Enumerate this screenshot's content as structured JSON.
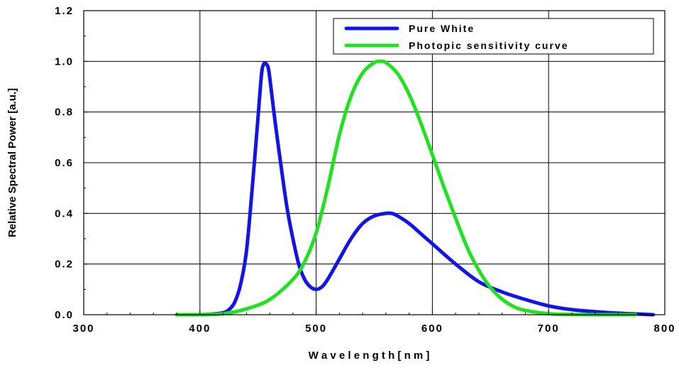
{
  "chart_data": {
    "type": "line",
    "title": "",
    "xlabel": "W a v e l e n g t h   [ n m ]",
    "ylabel": "Relative Spectral Power [a.u.]",
    "xlim": [
      300,
      800
    ],
    "ylim": [
      0,
      1.2
    ],
    "x_ticks": [
      "300",
      "400",
      "500",
      "600",
      "700",
      "800"
    ],
    "y_ticks": [
      "0.0",
      "0.2",
      "0.4",
      "0.6",
      "0.8",
      "1.0",
      "1.2"
    ],
    "grid": true,
    "legend_position": "top-right",
    "series": [
      {
        "name": "Pure White",
        "color": "#1414e6",
        "x": [
          380,
          400,
          410,
          420,
          425,
          430,
          435,
          440,
          445,
          450,
          453,
          455,
          457,
          459,
          461,
          465,
          470,
          475,
          480,
          485,
          490,
          495,
          500,
          505,
          510,
          520,
          530,
          540,
          550,
          560,
          565,
          570,
          580,
          590,
          600,
          620,
          640,
          660,
          680,
          700,
          720,
          740,
          760,
          780,
          790
        ],
        "y": [
          0.0,
          0.0,
          0.002,
          0.008,
          0.02,
          0.05,
          0.12,
          0.25,
          0.5,
          0.78,
          0.95,
          0.99,
          0.99,
          0.97,
          0.9,
          0.75,
          0.58,
          0.42,
          0.3,
          0.2,
          0.14,
          0.11,
          0.1,
          0.11,
          0.14,
          0.22,
          0.3,
          0.36,
          0.39,
          0.4,
          0.4,
          0.39,
          0.36,
          0.32,
          0.28,
          0.2,
          0.13,
          0.09,
          0.06,
          0.035,
          0.02,
          0.012,
          0.006,
          0.002,
          0.0
        ]
      },
      {
        "name": "Photopic sensitivity curve",
        "color": "#22e022",
        "x": [
          380,
          400,
          420,
          440,
          460,
          480,
          490,
          500,
          510,
          520,
          530,
          540,
          550,
          555,
          560,
          570,
          580,
          590,
          600,
          610,
          620,
          630,
          640,
          650,
          660,
          670,
          680,
          700,
          720,
          740,
          760,
          775
        ],
        "y": [
          0.0,
          0.0,
          0.004,
          0.023,
          0.06,
          0.139,
          0.208,
          0.323,
          0.503,
          0.71,
          0.862,
          0.954,
          0.995,
          1.0,
          0.995,
          0.952,
          0.87,
          0.757,
          0.631,
          0.503,
          0.381,
          0.265,
          0.175,
          0.107,
          0.061,
          0.032,
          0.017,
          0.004,
          0.001,
          0.0,
          0.0,
          0.0
        ]
      }
    ]
  }
}
